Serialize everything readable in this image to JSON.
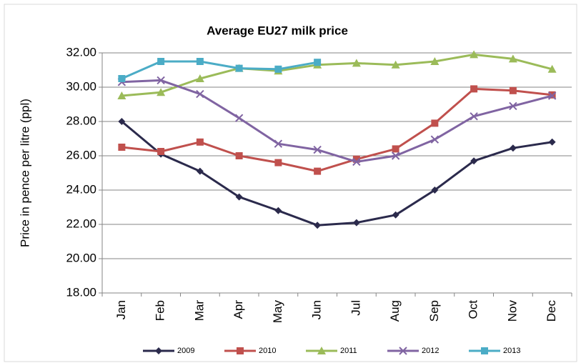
{
  "chart_data": {
    "type": "line",
    "title": "Average EU27 milk price",
    "y_label": "Price in pence per litre (ppl)",
    "categories": [
      "Jan",
      "Feb",
      "Mar",
      "Apr",
      "May",
      "Jun",
      "Jul",
      "Aug",
      "Sep",
      "Oct",
      "Nov",
      "Dec"
    ],
    "ylim": [
      18,
      32
    ],
    "yticks": [
      {
        "value": 18,
        "label": "18.00"
      },
      {
        "value": 20,
        "label": "20.00"
      },
      {
        "value": 22,
        "label": "22.00"
      },
      {
        "value": 24,
        "label": "24.00"
      },
      {
        "value": 26,
        "label": "26.00"
      },
      {
        "value": 28,
        "label": "28.00"
      },
      {
        "value": 30,
        "label": "30.00"
      },
      {
        "value": 32,
        "label": "32.00"
      }
    ],
    "grid": true,
    "legend": "bottom",
    "series": [
      {
        "name": "2009",
        "color": "#2b2a4c",
        "marker": "diamond",
        "values": [
          28.0,
          26.1,
          25.1,
          23.6,
          22.8,
          21.95,
          22.1,
          22.55,
          24.0,
          25.7,
          26.45,
          26.8
        ]
      },
      {
        "name": "2010",
        "color": "#c0504d",
        "marker": "square",
        "values": [
          26.5,
          26.25,
          26.8,
          26.0,
          25.6,
          25.1,
          25.8,
          26.4,
          27.9,
          29.9,
          29.8,
          29.55
        ]
      },
      {
        "name": "2011",
        "color": "#9bbb59",
        "marker": "triangle",
        "values": [
          29.5,
          29.7,
          30.5,
          31.1,
          30.95,
          31.3,
          31.4,
          31.3,
          31.5,
          31.9,
          31.65,
          31.05
        ]
      },
      {
        "name": "2012",
        "color": "#8064a2",
        "marker": "x",
        "values": [
          30.3,
          30.4,
          29.6,
          28.2,
          26.7,
          26.35,
          25.65,
          26.0,
          26.95,
          28.3,
          28.9,
          29.5
        ]
      },
      {
        "name": "2013",
        "color": "#4bacc6",
        "marker": "square",
        "values": [
          30.5,
          31.5,
          31.5,
          31.1,
          31.05,
          31.45,
          null,
          null,
          null,
          null,
          null,
          null
        ]
      }
    ]
  }
}
